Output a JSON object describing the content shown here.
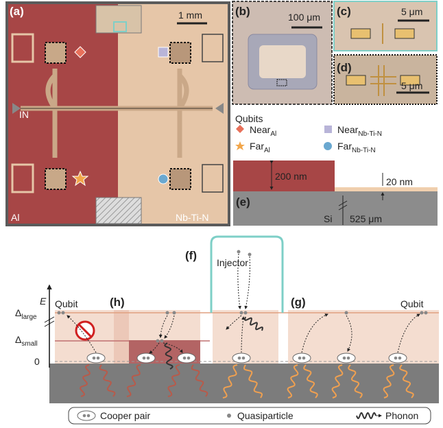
{
  "panel_a": {
    "label": "(a)",
    "scale": "1 mm",
    "port": "IN",
    "left_material": "Al",
    "right_material": "Nb-Ti-N"
  },
  "panel_b": {
    "label": "(b)",
    "scale": "100 μm"
  },
  "panel_c": {
    "label": "(c)",
    "scale": "5 μm"
  },
  "panel_d": {
    "label": "(d)",
    "scale": "5 μm"
  },
  "legend_qubits": {
    "title": "Qubits",
    "items": [
      {
        "text": "Near",
        "sub": "Al"
      },
      {
        "text": "Far",
        "sub": "Al"
      },
      {
        "text": "Near",
        "sub": "Nb-Ti-N"
      },
      {
        "text": "Far",
        "sub": "Nb-Ti-N"
      }
    ]
  },
  "panel_e": {
    "label": "(e)",
    "thick": "200 nm",
    "thin": "20 nm",
    "substrate": "Si",
    "substrate_thickness": "525 μm"
  },
  "diagram": {
    "label_f": "(f)",
    "injector": "Injector",
    "axis": "E",
    "levels": [
      {
        "symbol": "Δ",
        "sub": "large"
      },
      {
        "symbol": "Δ",
        "sub": "small"
      },
      {
        "symbol": "0"
      }
    ],
    "qubit_left": "Qubit",
    "label_h": "(h)",
    "label_g": "(g)",
    "qubit_right": "Qubit"
  },
  "legend_bottom": {
    "items": [
      "Cooper pair",
      "Quasiparticle",
      "Phonon"
    ]
  }
}
